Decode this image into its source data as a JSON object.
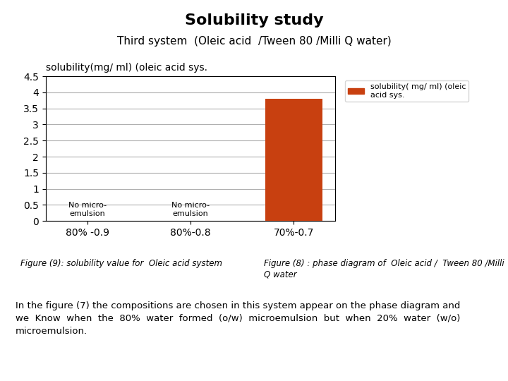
{
  "chart_data": {
    "type": "bar",
    "title": "Solubility study",
    "subtitle": "Third system  (Oleic acid  /Tween 80 /Milli Q water)",
    "chart_title": "solubility(mg/ ml) (oleic acid sys.",
    "categories": [
      "80% -0.9",
      "80%-0.8",
      "70%-0.7"
    ],
    "series": [
      {
        "name": "solubility( mg/ ml) (oleic\nacid sys.",
        "color": "#c84010",
        "values": [
          0,
          0,
          3.8
        ]
      }
    ],
    "ylim": [
      0,
      4.5
    ],
    "yticks": [
      0,
      0.5,
      1,
      1.5,
      2,
      2.5,
      3,
      3.5,
      4,
      4.5
    ],
    "grid": true,
    "legend": "upper left",
    "annotations": [
      {
        "category": "80% -0.9",
        "text": "No micro-\nemulsion"
      },
      {
        "category": "80%-0.8",
        "text": "No micro-\nemulsion"
      }
    ],
    "captions": [
      "Figure (9): solubility value for  Oleic acid system",
      "Figure (8) : phase diagram of  Oleic acid /  Tween 80 /Milli\nQ water"
    ],
    "note": "In the figure (7) the compositions are chosen in this system appear on the phase diagram and\nwe  Know  when  the  80%  water  formed  (o/w)  microemulsion  but  when  20%  water  (w/o)\nmicroemulsion."
  }
}
